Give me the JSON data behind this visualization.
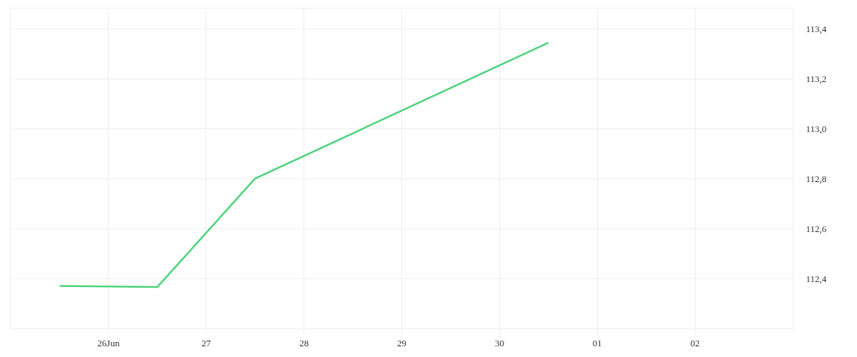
{
  "chart_data": {
    "type": "line",
    "x": [
      "--06-25T12:00",
      "--06-26T12:00",
      "--06-27T12:00",
      "--06-30T12:00"
    ],
    "series": [
      {
        "color": "#4cd47b",
        "values": [
          112.37,
          112.366,
          112.8,
          113.343
        ]
      }
    ],
    "xlim": [
      "--06-25",
      "--07-03"
    ],
    "xticks": [
      {
        "value": "--06-26",
        "label": "26Jun"
      },
      {
        "value": "--06-27",
        "label": "27"
      },
      {
        "value": "--06-28",
        "label": "28"
      },
      {
        "value": "--06-29",
        "label": "29"
      },
      {
        "value": "--06-30",
        "label": "30"
      },
      {
        "value": "--07-01",
        "label": "01"
      },
      {
        "value": "--07-02",
        "label": "02"
      }
    ],
    "ylim": [
      112.2,
      113.48
    ],
    "yticks": [
      {
        "value": 112.2,
        "label": null
      },
      {
        "value": 112.4,
        "label": "112,4"
      },
      {
        "value": 112.6,
        "label": "112,6"
      },
      {
        "value": 112.8,
        "label": "112,8"
      },
      {
        "value": 113.0,
        "label": "113,0"
      },
      {
        "value": 113.2,
        "label": "113,2"
      },
      {
        "value": 113.4,
        "label": "113,4"
      }
    ],
    "grid": true,
    "legend": false,
    "marker": "none",
    "line_style": "solid"
  }
}
